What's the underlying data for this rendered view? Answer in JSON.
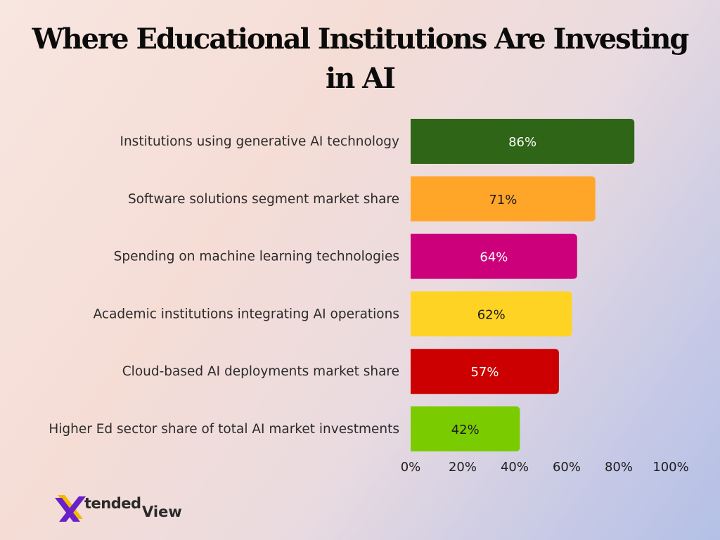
{
  "chart_data": {
    "type": "bar",
    "orientation": "horizontal",
    "title": "Where Educational Institutions Are Investing in AI",
    "categories": [
      "Institutions using generative AI technology",
      "Software solutions segment market share",
      "Spending on machine learning technologies",
      "Academic institutions integrating AI operations",
      "Cloud-based AI deployments market share",
      "Higher Ed sector share of total AI market investments"
    ],
    "values": [
      86,
      71,
      64,
      62,
      57,
      42
    ],
    "value_labels": [
      "86%",
      "71%",
      "64%",
      "62%",
      "57%",
      "42%"
    ],
    "bar_colors": [
      "#2e6516",
      "#ffa629",
      "#cc007a",
      "#ffd323",
      "#cc0000",
      "#7acc00"
    ],
    "value_label_colors": [
      "#ffffff",
      "#1a1a1a",
      "#ffffff",
      "#1a1a1a",
      "#ffffff",
      "#1a1a1a"
    ],
    "xlim": [
      0,
      100
    ],
    "x_ticks": [
      0,
      20,
      40,
      60,
      80,
      100
    ],
    "x_tick_labels": [
      "0%",
      "20%",
      "40%",
      "60%",
      "80%",
      "100%"
    ],
    "xlabel": "",
    "ylabel": "",
    "grid": false,
    "legend": "none"
  },
  "brand": {
    "logo_primary": "tended",
    "logo_secondary": "View",
    "logo_mark": "X",
    "mark_colors": [
      "#6a1fc9",
      "#f4b800"
    ]
  }
}
